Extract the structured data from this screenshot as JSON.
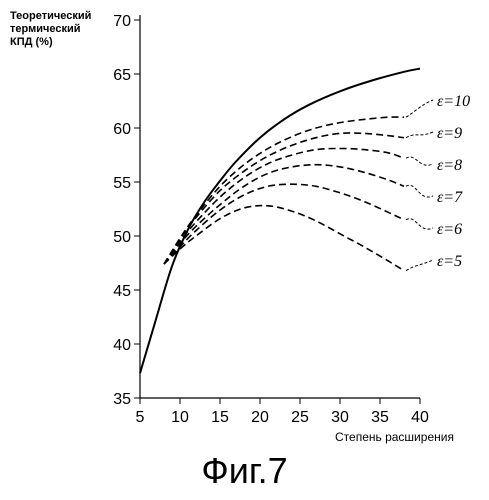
{
  "chart_data": {
    "type": "line",
    "ylabel": "Теоретический\nтермический\nКПД (%)",
    "xlabel": "Степень расширения",
    "caption": "Фиг.7",
    "xlim": [
      5,
      40
    ],
    "ylim": [
      35,
      70
    ],
    "xticks": [
      5,
      10,
      15,
      20,
      25,
      30,
      35,
      40
    ],
    "yticks": [
      35,
      40,
      45,
      50,
      55,
      60,
      65,
      70
    ],
    "grid": false,
    "series": [
      {
        "name": "",
        "style": "solid",
        "x": [
          5,
          7,
          9,
          11,
          13,
          15,
          17,
          20,
          23,
          26,
          30,
          34,
          38,
          40
        ],
        "y": [
          37.3,
          42.3,
          47.2,
          50.6,
          53.1,
          55.1,
          56.9,
          59.1,
          60.8,
          62.1,
          63.4,
          64.4,
          65.2,
          65.5
        ]
      },
      {
        "name": "ε=10",
        "style": "dashed",
        "x": [
          8,
          10,
          12,
          15,
          18,
          21,
          24,
          27,
          30,
          33,
          36,
          38
        ],
        "y": [
          47.4,
          49.8,
          51.9,
          54.6,
          56.6,
          58.1,
          59.2,
          60.0,
          60.5,
          60.8,
          61.0,
          61.0
        ]
      },
      {
        "name": "ε=9",
        "style": "dashed",
        "x": [
          8,
          10,
          12,
          15,
          18,
          21,
          24,
          27,
          30,
          33,
          36,
          38
        ],
        "y": [
          47.4,
          49.7,
          51.7,
          54.2,
          56.0,
          57.4,
          58.4,
          59.1,
          59.5,
          59.5,
          59.3,
          59.1
        ]
      },
      {
        "name": "ε=8",
        "style": "dashed",
        "x": [
          8,
          10,
          12,
          15,
          18,
          21,
          24,
          27,
          30,
          33,
          36,
          38
        ],
        "y": [
          47.4,
          49.5,
          51.3,
          53.6,
          55.4,
          56.7,
          57.5,
          58.0,
          58.1,
          58.0,
          57.7,
          57.2
        ]
      },
      {
        "name": "ε=7",
        "style": "dashed",
        "x": [
          8,
          10,
          12,
          15,
          18,
          21,
          24,
          27,
          30,
          33,
          36,
          38
        ],
        "y": [
          47.4,
          49.3,
          50.9,
          52.9,
          54.6,
          55.8,
          56.4,
          56.6,
          56.4,
          55.9,
          55.2,
          54.6
        ]
      },
      {
        "name": "ε=6",
        "style": "dashed",
        "x": [
          8,
          10,
          12,
          15,
          18,
          21,
          24,
          27,
          30,
          33,
          36,
          38
        ],
        "y": [
          47.4,
          49.0,
          50.5,
          52.4,
          53.8,
          54.6,
          54.8,
          54.6,
          54.0,
          53.2,
          52.2,
          51.5
        ]
      },
      {
        "name": "ε=5",
        "style": "dashed",
        "x": [
          8,
          10,
          12,
          15,
          18,
          21,
          24,
          27,
          30,
          33,
          36,
          38
        ],
        "y": [
          47.4,
          48.8,
          50.0,
          51.6,
          52.6,
          52.8,
          52.3,
          51.4,
          50.2,
          49.0,
          47.7,
          46.8
        ]
      }
    ],
    "labels": [
      {
        "text": "ε=10",
        "value": 60.8
      },
      {
        "text": "ε=9",
        "value": 59.1
      },
      {
        "text": "ε=8",
        "value": 57.2
      },
      {
        "text": "ε=7",
        "value": 54.6
      },
      {
        "text": "ε=6",
        "value": 51.5
      },
      {
        "text": "ε=5",
        "value": 47.4
      }
    ]
  }
}
